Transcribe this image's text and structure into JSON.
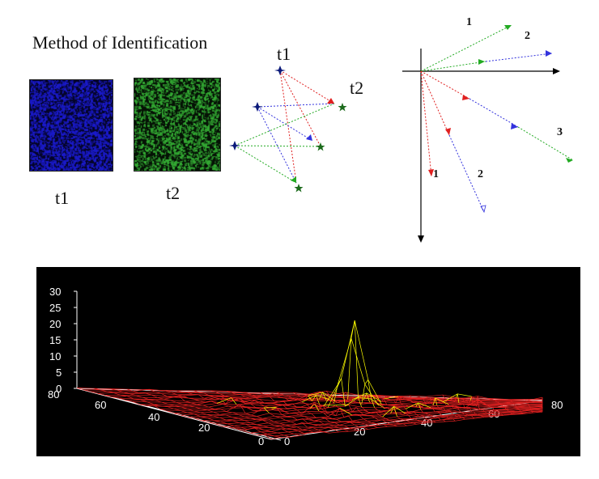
{
  "title": "Method of Identification",
  "images": {
    "t1_label": "t1",
    "t2_label": "t2",
    "t1_color": "#1a1acc",
    "t2_color": "#33aa33"
  },
  "matching_diagram": {
    "t1_label": "t1",
    "t2_label": "t2",
    "colors": {
      "t1_marker": "#0b1a7a",
      "t2_marker": "#1c6b1c",
      "red": "#e02020",
      "blue": "#3333dd",
      "green": "#22aa22"
    }
  },
  "vector_diagram": {
    "labels": [
      "1",
      "2",
      "3",
      "1",
      "2"
    ]
  },
  "surface_plot": {
    "z_ticks": [
      "30",
      "25",
      "20",
      "15",
      "10",
      "5",
      "0"
    ],
    "left_axis_ticks": [
      "80",
      "60",
      "40",
      "20",
      "0"
    ],
    "right_axis_ticks": [
      "0",
      "20",
      "40",
      "60",
      "80"
    ],
    "colors": {
      "background": "#000000",
      "surface": "#e02020",
      "peaks": "#ffff00",
      "axes": "#ffffff"
    }
  }
}
